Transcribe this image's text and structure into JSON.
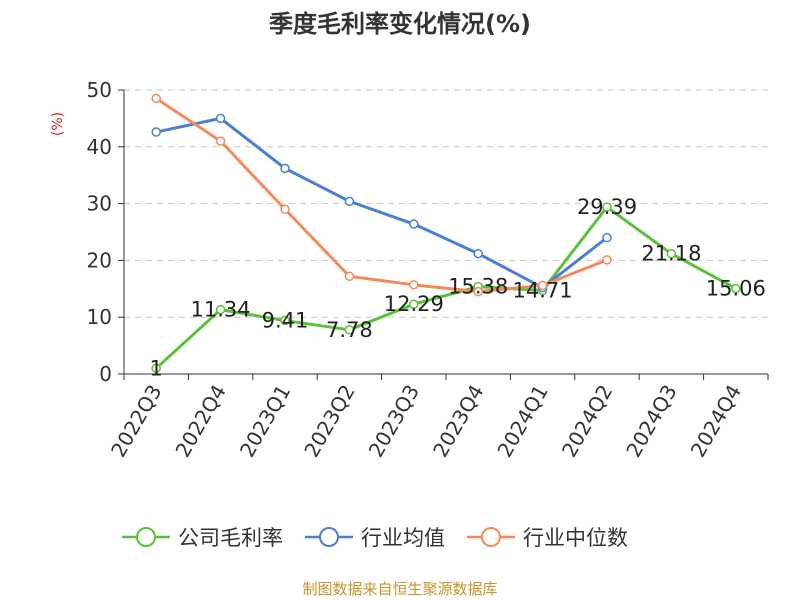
{
  "chart_data": {
    "type": "line",
    "title": "季度毛利率变化情况(%)",
    "ylabel": "(%)",
    "xlabel": "",
    "ylim": [
      0,
      50
    ],
    "yticks": [
      0,
      10,
      20,
      30,
      40,
      50
    ],
    "grid": true,
    "legend_position": "bottom",
    "categories": [
      "2022Q3",
      "2022Q4",
      "2023Q1",
      "2023Q2",
      "2023Q3",
      "2023Q4",
      "2024Q1",
      "2024Q2",
      "2024Q3",
      "2024Q4"
    ],
    "series": [
      {
        "name": "公司毛利率",
        "color": "#5ac13a",
        "values": [
          1,
          11.34,
          9.41,
          7.78,
          12.29,
          15.38,
          14.71,
          29.39,
          21.18,
          15.06
        ],
        "labels": [
          "1",
          "11.34",
          "9.41",
          "7.78",
          "12.29",
          "15.38",
          "14.71",
          "29.39",
          "21.18",
          "15.06"
        ]
      },
      {
        "name": "行业均值",
        "color": "#4a7fd6",
        "values": [
          42.6,
          45,
          36.2,
          30.4,
          26.4,
          21.2,
          15.2,
          24,
          null,
          null
        ]
      },
      {
        "name": "行业中位数",
        "color": "#f5895a",
        "values": [
          48.5,
          41,
          29,
          17.2,
          15.7,
          14.5,
          15.6,
          20.1,
          null,
          null
        ]
      }
    ]
  },
  "source_note": "制图数据来自恒生聚源数据库"
}
